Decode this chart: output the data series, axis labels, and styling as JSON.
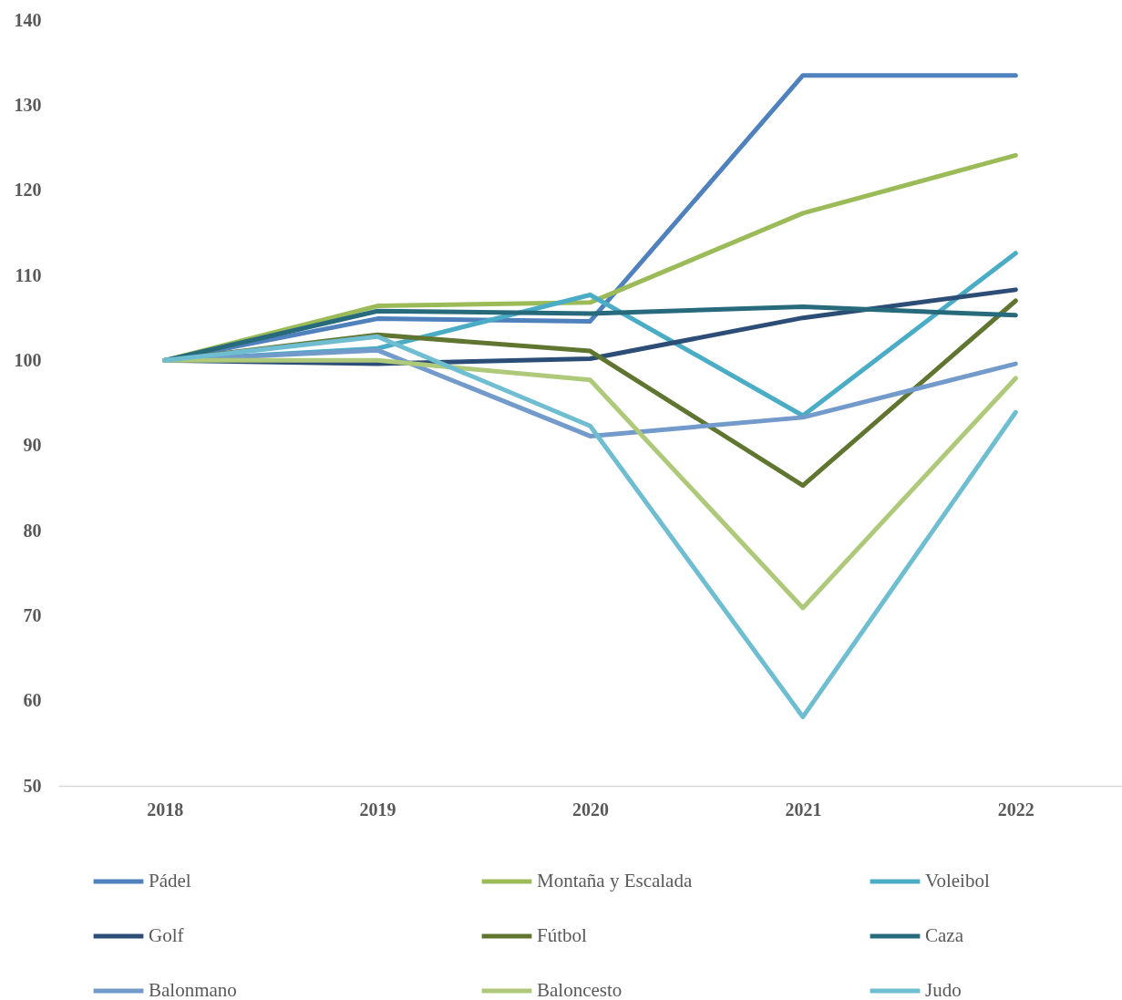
{
  "chart_data": {
    "type": "line",
    "categories": [
      "2018",
      "2019",
      "2020",
      "2021",
      "2022"
    ],
    "ylim": [
      50,
      140
    ],
    "yticks": [
      50,
      60,
      70,
      80,
      90,
      100,
      110,
      120,
      130,
      140
    ],
    "legend": "bottom",
    "series": [
      {
        "name": "Pádel",
        "color": "#4f81bd",
        "values": [
          100,
          104.9,
          104.6,
          133.5,
          133.5
        ]
      },
      {
        "name": "Montaña y Escalada",
        "color": "#9bbb59",
        "values": [
          100,
          106.4,
          106.8,
          117.3,
          124.1
        ]
      },
      {
        "name": "Voleibol",
        "color": "#4bacc6",
        "values": [
          100,
          101.4,
          107.7,
          93.5,
          112.6
        ]
      },
      {
        "name": "Golf",
        "color": "#2c4d75",
        "values": [
          100,
          99.6,
          100.2,
          105.0,
          108.3
        ]
      },
      {
        "name": "Fútbol",
        "color": "#5f7530",
        "values": [
          100,
          103.0,
          101.1,
          85.3,
          107.0
        ]
      },
      {
        "name": "Caza",
        "color": "#276a7c",
        "values": [
          100,
          105.8,
          105.5,
          106.3,
          105.3
        ]
      },
      {
        "name": "Balonmano",
        "color": "#729aca",
        "values": [
          100,
          101.2,
          91.1,
          93.3,
          99.6
        ]
      },
      {
        "name": "Baloncesto",
        "color": "#afc97a",
        "values": [
          100,
          100.0,
          97.7,
          70.9,
          97.9
        ]
      },
      {
        "name": "Judo",
        "color": "#6fbdd1",
        "values": [
          100,
          102.8,
          92.3,
          58.1,
          93.9
        ]
      }
    ]
  }
}
